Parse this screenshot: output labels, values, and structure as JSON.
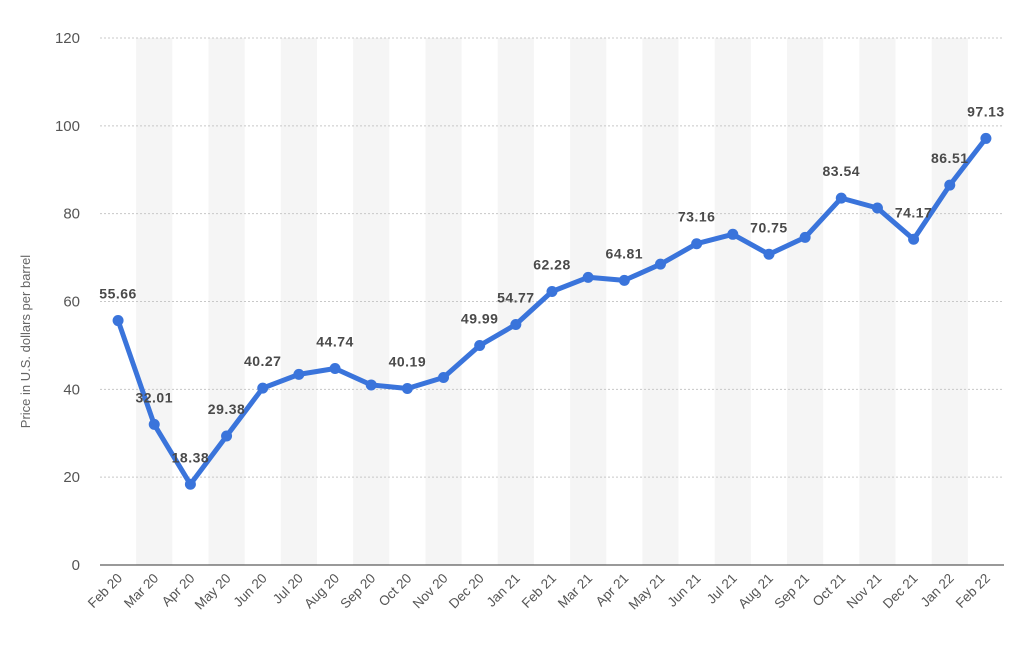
{
  "colors": {
    "line": "#3a74db",
    "band": "#f5f5f5",
    "grid": "#c8c8c8",
    "axis": "#333333",
    "background": "#ffffff"
  },
  "chart_data": {
    "type": "line",
    "ylabel": "Price in U.S. dollars per barrel",
    "ylim": [
      0,
      120
    ],
    "yticks": [
      0,
      20,
      40,
      60,
      80,
      100,
      120
    ],
    "grid": "horizontal dotted",
    "categories": [
      "Feb 20",
      "Mar 20",
      "Apr 20",
      "May 20",
      "Jun 20",
      "Jul 20",
      "Aug 20",
      "Sep 20",
      "Oct 20",
      "Nov 20",
      "Dec 20",
      "Jan 21",
      "Feb 21",
      "Mar 21",
      "Apr 21",
      "May 21",
      "Jun 21",
      "Jul 21",
      "Aug 21",
      "Sep 21",
      "Oct 21",
      "Nov 21",
      "Dec 21",
      "Jan 22",
      "Feb 22"
    ],
    "series": [
      {
        "values": [
          55.66,
          32.01,
          18.38,
          29.38,
          40.27,
          43.4,
          44.74,
          41.0,
          40.19,
          42.7,
          49.99,
          54.77,
          62.28,
          65.5,
          64.81,
          68.5,
          73.16,
          75.3,
          70.75,
          74.6,
          83.54,
          81.3,
          74.17,
          86.51,
          97.13
        ],
        "data_labels": [
          "55.66",
          "32.01",
          "18.38",
          "29.38",
          "40.27",
          "",
          "44.74",
          "",
          "40.19",
          "",
          "49.99",
          "54.77",
          "62.28",
          "",
          "64.81",
          "",
          "73.16",
          "",
          "70.75",
          "",
          "83.54",
          "",
          "74.17",
          "86.51",
          "97.13"
        ]
      }
    ]
  }
}
